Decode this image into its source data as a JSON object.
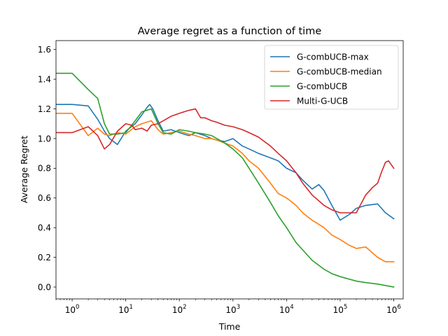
{
  "chart_data": {
    "type": "line",
    "title": "Average regret as a function of time",
    "xlabel": "Time",
    "ylabel": "Average Regret",
    "xscale": "log",
    "xlim": [
      0.5,
      1500000
    ],
    "ylim": [
      -0.08,
      1.66
    ],
    "grid": false,
    "legend_position": "top-right",
    "yticks": [
      {
        "v": 0.0,
        "label": "0.0"
      },
      {
        "v": 0.2,
        "label": "0.2"
      },
      {
        "v": 0.4,
        "label": "0.4"
      },
      {
        "v": 0.6,
        "label": "0.6"
      },
      {
        "v": 0.8,
        "label": "0.8"
      },
      {
        "v": 1.0,
        "label": "1.0"
      },
      {
        "v": 1.2,
        "label": "1.2"
      },
      {
        "v": 1.4,
        "label": "1.4"
      },
      {
        "v": 1.6,
        "label": "1.6"
      }
    ],
    "xticks": [
      {
        "v": 1,
        "base": "10",
        "exp": "0"
      },
      {
        "v": 10,
        "base": "10",
        "exp": "1"
      },
      {
        "v": 100,
        "base": "10",
        "exp": "2"
      },
      {
        "v": 1000,
        "base": "10",
        "exp": "3"
      },
      {
        "v": 10000,
        "base": "10",
        "exp": "4"
      },
      {
        "v": 100000,
        "base": "10",
        "exp": "5"
      },
      {
        "v": 1000000,
        "base": "10",
        "exp": "6"
      }
    ],
    "series": [
      {
        "name": "G-combUCB-max",
        "color": "#1f77b4",
        "x": [
          0.5,
          1,
          2,
          3,
          4,
          5,
          7,
          10,
          15,
          20,
          25,
          28,
          32,
          40,
          50,
          70,
          100,
          150,
          200,
          300,
          400,
          500,
          700,
          1000,
          1500,
          2000,
          3000,
          5000,
          7000,
          10000,
          15000,
          20000,
          30000,
          40000,
          50000,
          70000,
          100000,
          150000,
          200000,
          300000,
          500000,
          700000,
          1000000
        ],
        "y": [
          1.23,
          1.23,
          1.22,
          1.13,
          1.05,
          1.0,
          0.96,
          1.05,
          1.1,
          1.16,
          1.21,
          1.23,
          1.2,
          1.12,
          1.05,
          1.06,
          1.04,
          1.02,
          1.04,
          1.02,
          1.0,
          0.99,
          0.98,
          1.0,
          0.95,
          0.93,
          0.9,
          0.87,
          0.85,
          0.8,
          0.77,
          0.72,
          0.66,
          0.69,
          0.65,
          0.55,
          0.45,
          0.49,
          0.53,
          0.55,
          0.56,
          0.5,
          0.46
        ]
      },
      {
        "name": "G-combUCB-median",
        "color": "#ff7f0e",
        "x": [
          0.5,
          1,
          2,
          3,
          4,
          5,
          7,
          10,
          15,
          20,
          30,
          40,
          50,
          70,
          100,
          150,
          200,
          300,
          400,
          500,
          700,
          1000,
          1500,
          2000,
          3000,
          5000,
          7000,
          10000,
          15000,
          20000,
          30000,
          50000,
          70000,
          100000,
          150000,
          200000,
          300000,
          400000,
          500000,
          700000,
          1000000
        ],
        "y": [
          1.17,
          1.17,
          1.02,
          1.07,
          1.03,
          1.02,
          1.04,
          1.03,
          1.08,
          1.1,
          1.12,
          1.06,
          1.03,
          1.04,
          1.05,
          1.03,
          1.02,
          1.0,
          1.0,
          0.99,
          0.97,
          0.95,
          0.9,
          0.85,
          0.8,
          0.7,
          0.63,
          0.6,
          0.55,
          0.5,
          0.45,
          0.4,
          0.35,
          0.32,
          0.28,
          0.26,
          0.27,
          0.23,
          0.2,
          0.17,
          0.17
        ]
      },
      {
        "name": "G-combUCB",
        "color": "#2ca02c",
        "x": [
          0.5,
          1,
          2,
          3,
          4,
          5,
          7,
          10,
          15,
          20,
          30,
          40,
          50,
          70,
          100,
          150,
          200,
          300,
          400,
          500,
          700,
          1000,
          1500,
          2000,
          3000,
          5000,
          7000,
          10000,
          15000,
          20000,
          30000,
          50000,
          70000,
          100000,
          200000,
          300000,
          500000,
          1000000
        ],
        "y": [
          1.44,
          1.44,
          1.33,
          1.27,
          1.1,
          1.03,
          1.03,
          1.04,
          1.12,
          1.18,
          1.2,
          1.1,
          1.04,
          1.03,
          1.06,
          1.05,
          1.04,
          1.03,
          1.02,
          1.0,
          0.97,
          0.93,
          0.87,
          0.8,
          0.7,
          0.57,
          0.48,
          0.4,
          0.3,
          0.25,
          0.18,
          0.12,
          0.09,
          0.07,
          0.04,
          0.03,
          0.02,
          0.0
        ]
      },
      {
        "name": "Multi-G-UCB",
        "color": "#d62728",
        "x": [
          0.5,
          1,
          2,
          3,
          4,
          5,
          7,
          10,
          13,
          15,
          20,
          25,
          30,
          40,
          50,
          70,
          100,
          150,
          200,
          250,
          300,
          400,
          500,
          700,
          1000,
          1500,
          2000,
          3000,
          5000,
          7000,
          10000,
          15000,
          20000,
          30000,
          50000,
          70000,
          100000,
          150000,
          200000,
          300000,
          400000,
          500000,
          600000,
          700000,
          800000,
          1000000
        ],
        "y": [
          1.04,
          1.04,
          1.08,
          1.02,
          0.93,
          0.96,
          1.05,
          1.1,
          1.09,
          1.06,
          1.07,
          1.05,
          1.09,
          1.1,
          1.12,
          1.15,
          1.17,
          1.19,
          1.2,
          1.14,
          1.14,
          1.12,
          1.11,
          1.09,
          1.08,
          1.06,
          1.04,
          1.01,
          0.95,
          0.9,
          0.85,
          0.77,
          0.7,
          0.62,
          0.55,
          0.52,
          0.5,
          0.5,
          0.5,
          0.62,
          0.67,
          0.7,
          0.78,
          0.84,
          0.85,
          0.8
        ]
      }
    ]
  }
}
